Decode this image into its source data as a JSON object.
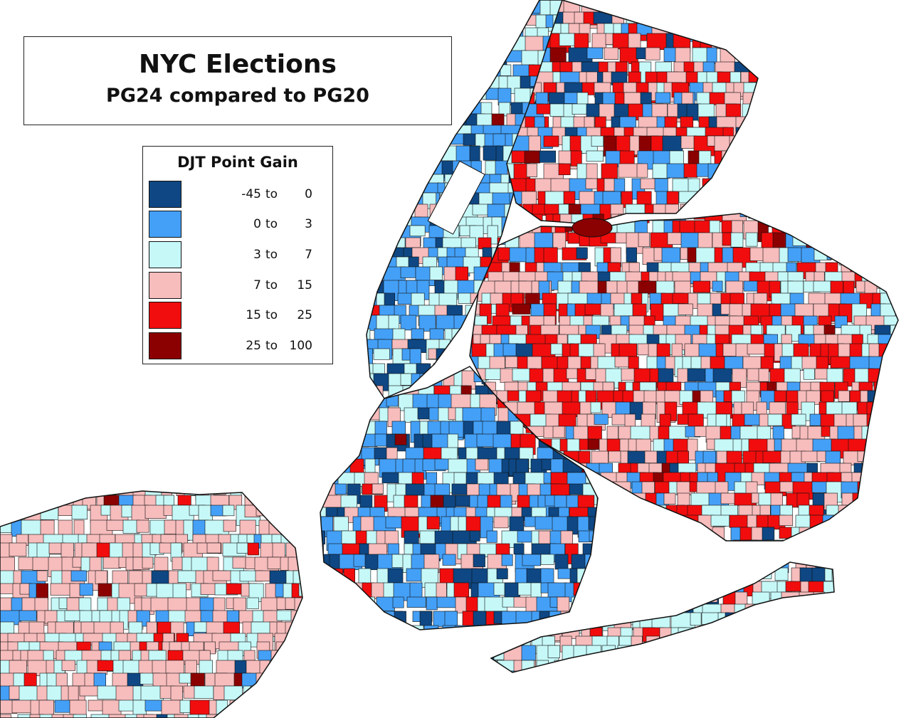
{
  "title": "NYC Elections",
  "subtitle": "PG24 compared to PG20",
  "legend": {
    "title": "DJT Point Gain",
    "to_word": "to",
    "bins": [
      {
        "low": "-45",
        "high": "0",
        "color": "#0e4783"
      },
      {
        "low": "0",
        "high": "3",
        "color": "#44a0f7"
      },
      {
        "low": "3",
        "high": "7",
        "color": "#c6f8f8"
      },
      {
        "low": "7",
        "high": "15",
        "color": "#f7bcbc"
      },
      {
        "low": "15",
        "high": "25",
        "color": "#f10d0d"
      },
      {
        "low": "25",
        "high": "100",
        "color": "#8b0000"
      }
    ]
  },
  "colors": {
    "outline": "#111111",
    "water": "#ffffff"
  }
}
